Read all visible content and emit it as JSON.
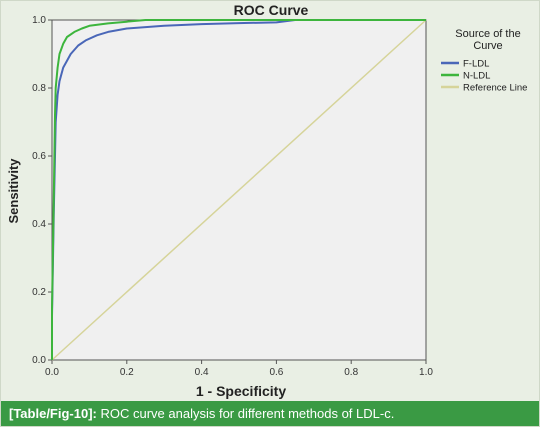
{
  "chart_data": {
    "type": "line",
    "title": "ROC Curve",
    "xlabel": "1 - Specificity",
    "ylabel": "Sensitivity",
    "xlim": [
      0,
      1
    ],
    "ylim": [
      0,
      1
    ],
    "xticks": [
      "0.0",
      "0.2",
      "0.4",
      "0.6",
      "0.8",
      "1.0"
    ],
    "yticks": [
      "0.0",
      "0.2",
      "0.4",
      "0.6",
      "0.8",
      "1.0"
    ],
    "grid": false,
    "legend_title": "Source of the Curve",
    "legend_placement": "right",
    "series": [
      {
        "name": "F-LDL",
        "color": "#4a67b8",
        "x": [
          0.0,
          0.0,
          0.005,
          0.008,
          0.01,
          0.015,
          0.02,
          0.03,
          0.04,
          0.05,
          0.07,
          0.09,
          0.12,
          0.15,
          0.2,
          0.3,
          0.4,
          0.5,
          0.6,
          0.65,
          0.7,
          0.8,
          0.9,
          1.0
        ],
        "y": [
          0.0,
          0.13,
          0.45,
          0.6,
          0.7,
          0.78,
          0.82,
          0.86,
          0.88,
          0.9,
          0.925,
          0.94,
          0.955,
          0.965,
          0.975,
          0.983,
          0.988,
          0.991,
          0.993,
          1.0,
          1.0,
          1.0,
          1.0,
          1.0
        ]
      },
      {
        "name": "N-LDL",
        "color": "#3db53d",
        "x": [
          0.0,
          0.0,
          0.005,
          0.008,
          0.01,
          0.015,
          0.02,
          0.03,
          0.04,
          0.06,
          0.08,
          0.1,
          0.15,
          0.2,
          0.25,
          0.3,
          0.4,
          0.5,
          0.6,
          0.7,
          0.8,
          0.9,
          1.0
        ],
        "y": [
          0.0,
          0.15,
          0.5,
          0.72,
          0.8,
          0.86,
          0.9,
          0.93,
          0.95,
          0.965,
          0.975,
          0.983,
          0.99,
          0.995,
          1.0,
          1.0,
          1.0,
          1.0,
          1.0,
          1.0,
          1.0,
          1.0,
          1.0
        ]
      },
      {
        "name": "Reference Line",
        "color": "#d6d49a",
        "x": [
          0,
          1
        ],
        "y": [
          0,
          1
        ]
      }
    ]
  },
  "caption": {
    "tag": "[Table/Fig-10]:",
    "text": " ROC curve analysis for different methods of LDL-c."
  }
}
